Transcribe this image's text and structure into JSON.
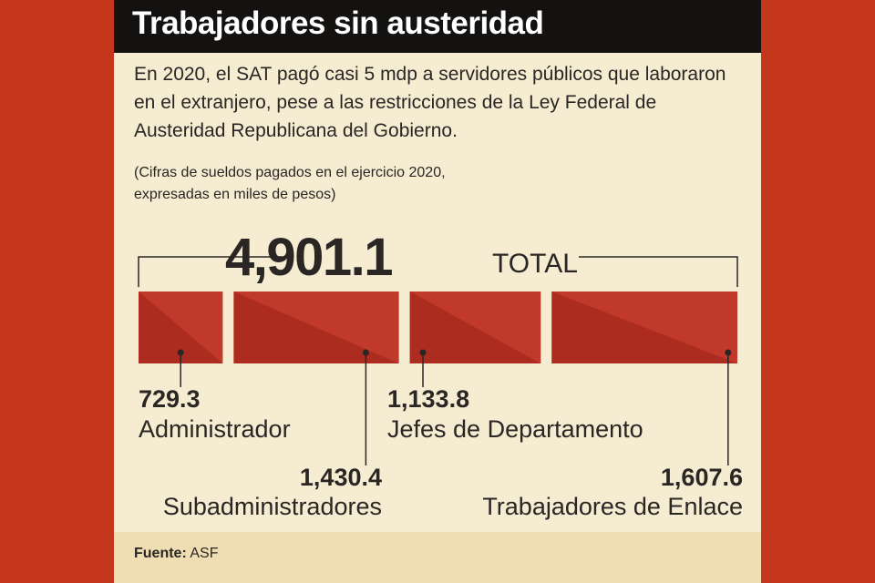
{
  "header": {
    "title": "Trabajadores sin austeridad"
  },
  "intro": "En 2020, el SAT pagó casi 5 mdp a servidores públicos que laboraron en el extranjero, pese a las restricciones de la Ley Federal de Austeridad Republicana del Gobierno.",
  "note_lines": [
    "(Cifras de sueldos pagados en el ejercicio 2020,",
    "expresadas en miles de pesos)"
  ],
  "colors": {
    "bar": "#c0392b",
    "bar_shade": "#a82a1e",
    "page_bg": "#c5371d",
    "panel_bg": "#f6ecd2",
    "title_bg": "#141210",
    "footer_bg": "#efdeb3",
    "text": "#2a2624"
  },
  "chart_data": {
    "type": "bar",
    "orientation": "horizontal-stacked",
    "total_value": "4,901.1",
    "total_label": "TOTAL",
    "categories": [
      "Administrador",
      "Subadministradores",
      "Jefes de Departamento",
      "Trabajadores de Enlace"
    ],
    "values": [
      729.3,
      1430.4,
      1133.8,
      1607.6
    ],
    "value_labels": [
      "729.3",
      "1,430.4",
      "1,133.8",
      "1,607.6"
    ]
  },
  "footer": {
    "source_label": "Fuente:",
    "source_value": "ASF"
  }
}
